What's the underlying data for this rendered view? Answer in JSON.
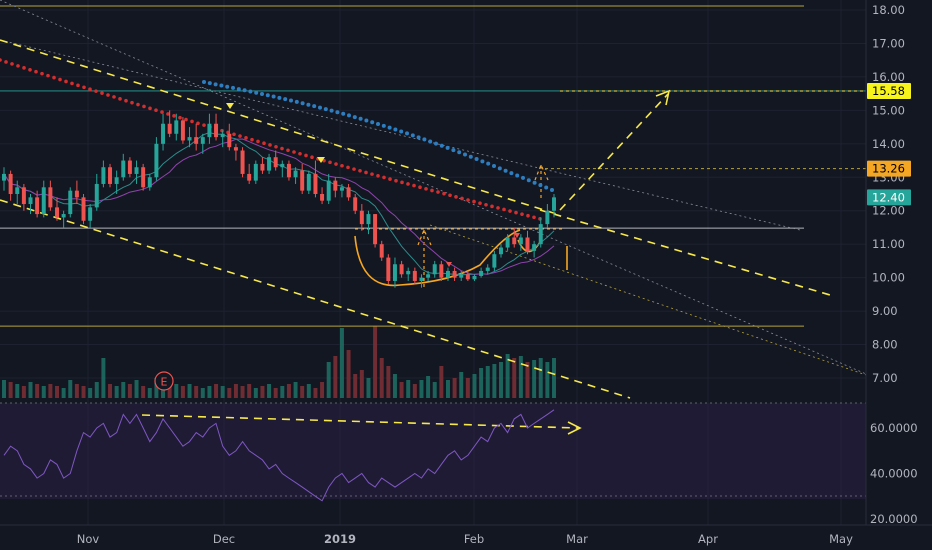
{
  "chart_data": {
    "type": "candlestick",
    "price_axis": {
      "ticks": [
        "18.00",
        "17.00",
        "16.00",
        "15.00",
        "14.00",
        "13.00",
        "12.00",
        "11.00",
        "10.00",
        "9.00",
        "8.00",
        "7.00"
      ],
      "range": [
        6.6,
        18.25
      ]
    },
    "rsi_axis": {
      "ticks": [
        "60.0000",
        "40.0000",
        "20.0000"
      ],
      "range": [
        18,
        70
      ],
      "band_upper": 70,
      "band_lower": 30
    },
    "time_axis": {
      "labels": [
        "Nov",
        "Dec",
        "2019",
        "Feb",
        "Mar",
        "Apr",
        "May"
      ]
    },
    "price_badges": [
      {
        "label": "15.58",
        "value": 15.58,
        "bg": "#f7f41b",
        "fg": "#000000"
      },
      {
        "label": "13.26",
        "value": 13.26,
        "bg": "#f5a623",
        "fg": "#000000"
      },
      {
        "label": "12.40",
        "value": 12.4,
        "bg": "#26a69a",
        "fg": "#ffffff"
      }
    ],
    "horizontal_levels": [
      18.12,
      15.58,
      13.26,
      11.48,
      8.55
    ],
    "earnings_marker": "E",
    "candles": [
      [
        12.9,
        13.3,
        12.6,
        13.1
      ],
      [
        13.1,
        13.2,
        12.3,
        12.5
      ],
      [
        12.5,
        12.9,
        12.2,
        12.7
      ],
      [
        12.7,
        12.8,
        12.0,
        12.2
      ],
      [
        12.2,
        12.5,
        11.9,
        12.4
      ],
      [
        12.4,
        12.6,
        11.8,
        11.9
      ],
      [
        11.9,
        12.9,
        11.8,
        12.7
      ],
      [
        12.7,
        12.9,
        12.0,
        12.1
      ],
      [
        12.1,
        12.4,
        11.7,
        11.8
      ],
      [
        11.8,
        12.0,
        11.5,
        11.9
      ],
      [
        11.9,
        12.7,
        11.8,
        12.6
      ],
      [
        12.6,
        12.9,
        12.2,
        12.4
      ],
      [
        12.4,
        12.5,
        11.6,
        11.7
      ],
      [
        11.7,
        12.2,
        11.5,
        12.1
      ],
      [
        12.1,
        13.1,
        12.0,
        12.8
      ],
      [
        12.8,
        13.5,
        12.7,
        13.3
      ],
      [
        13.3,
        13.4,
        12.7,
        12.8
      ],
      [
        12.8,
        13.2,
        12.5,
        13.0
      ],
      [
        13.0,
        13.7,
        12.9,
        13.5
      ],
      [
        13.5,
        13.6,
        13.0,
        13.1
      ],
      [
        13.1,
        13.5,
        12.8,
        13.3
      ],
      [
        13.3,
        13.4,
        12.6,
        12.7
      ],
      [
        12.7,
        13.1,
        12.6,
        13.0
      ],
      [
        13.0,
        14.2,
        12.9,
        14.0
      ],
      [
        14.0,
        14.9,
        13.8,
        14.6
      ],
      [
        14.6,
        15.0,
        14.2,
        14.3
      ],
      [
        14.3,
        14.9,
        14.1,
        14.7
      ],
      [
        14.7,
        14.8,
        14.0,
        14.1
      ],
      [
        14.1,
        14.5,
        13.9,
        14.2
      ],
      [
        14.2,
        14.6,
        13.8,
        14.0
      ],
      [
        14.0,
        14.3,
        13.7,
        14.2
      ],
      [
        14.2,
        14.9,
        14.0,
        14.6
      ],
      [
        14.6,
        14.9,
        14.1,
        14.2
      ],
      [
        14.2,
        14.4,
        13.9,
        14.3
      ],
      [
        14.3,
        14.6,
        13.8,
        13.9
      ],
      [
        13.9,
        14.0,
        13.5,
        13.8
      ],
      [
        13.8,
        13.9,
        13.0,
        13.1
      ],
      [
        13.1,
        13.4,
        12.8,
        12.9
      ],
      [
        12.9,
        13.5,
        12.8,
        13.4
      ],
      [
        13.4,
        13.6,
        13.1,
        13.2
      ],
      [
        13.2,
        13.7,
        13.1,
        13.6
      ],
      [
        13.6,
        13.8,
        13.2,
        13.3
      ],
      [
        13.3,
        13.5,
        13.0,
        13.4
      ],
      [
        13.4,
        13.5,
        12.9,
        13.0
      ],
      [
        13.0,
        13.3,
        12.8,
        13.2
      ],
      [
        13.2,
        13.4,
        12.5,
        12.6
      ],
      [
        12.6,
        13.2,
        12.5,
        13.1
      ],
      [
        13.1,
        13.5,
        12.4,
        12.5
      ],
      [
        12.5,
        12.7,
        12.2,
        12.3
      ],
      [
        12.3,
        13.1,
        12.2,
        12.9
      ],
      [
        12.9,
        13.0,
        12.4,
        12.6
      ],
      [
        12.6,
        12.8,
        12.4,
        12.7
      ],
      [
        12.7,
        12.8,
        12.3,
        12.4
      ],
      [
        12.4,
        12.5,
        11.9,
        12.0
      ],
      [
        12.0,
        12.2,
        11.4,
        11.6
      ],
      [
        11.6,
        12.0,
        11.3,
        11.9
      ],
      [
        11.9,
        11.9,
        10.9,
        11.0
      ],
      [
        11.0,
        11.1,
        10.5,
        10.6
      ],
      [
        10.6,
        10.7,
        9.8,
        9.9
      ],
      [
        9.9,
        10.6,
        9.7,
        10.4
      ],
      [
        10.4,
        10.5,
        10.0,
        10.1
      ],
      [
        10.1,
        10.3,
        9.9,
        10.2
      ],
      [
        10.2,
        10.3,
        9.8,
        9.9
      ],
      [
        9.9,
        10.1,
        9.7,
        10.0
      ],
      [
        10.0,
        10.2,
        9.9,
        10.1
      ],
      [
        10.1,
        10.5,
        10.0,
        10.4
      ],
      [
        10.4,
        10.5,
        9.9,
        10.0
      ],
      [
        10.0,
        10.3,
        9.9,
        10.2
      ],
      [
        10.2,
        10.3,
        9.9,
        10.0
      ],
      [
        10.0,
        10.2,
        9.9,
        10.1
      ],
      [
        10.1,
        10.2,
        9.9,
        9.95
      ],
      [
        9.95,
        10.1,
        9.9,
        10.05
      ],
      [
        10.05,
        10.3,
        10.0,
        10.2
      ],
      [
        10.2,
        10.4,
        10.1,
        10.3
      ],
      [
        10.3,
        10.8,
        10.2,
        10.7
      ],
      [
        10.7,
        11.0,
        10.6,
        10.9
      ],
      [
        10.9,
        11.3,
        10.8,
        11.2
      ],
      [
        11.2,
        11.5,
        10.9,
        11.0
      ],
      [
        11.0,
        11.3,
        10.8,
        11.2
      ],
      [
        11.2,
        11.4,
        10.7,
        10.8
      ],
      [
        10.8,
        11.1,
        10.6,
        11.0
      ],
      [
        11.0,
        11.8,
        10.9,
        11.6
      ],
      [
        11.6,
        12.2,
        11.5,
        12.0
      ],
      [
        12.0,
        12.5,
        11.8,
        12.4
      ]
    ],
    "volume": [
      0.9,
      0.8,
      0.7,
      0.6,
      0.8,
      0.7,
      0.6,
      0.7,
      0.6,
      0.5,
      0.9,
      0.7,
      0.6,
      0.5,
      0.8,
      2.0,
      0.7,
      0.6,
      0.8,
      0.7,
      0.9,
      0.6,
      0.5,
      1.0,
      0.9,
      0.8,
      0.7,
      0.6,
      0.7,
      0.6,
      0.5,
      0.6,
      0.7,
      0.6,
      0.5,
      0.7,
      0.6,
      0.7,
      0.5,
      0.6,
      0.7,
      0.5,
      0.6,
      0.7,
      0.8,
      0.6,
      0.7,
      0.5,
      0.8,
      1.8,
      2.1,
      3.5,
      2.4,
      1.2,
      1.4,
      1.0,
      3.6,
      2.0,
      1.6,
      1.2,
      0.8,
      0.9,
      0.7,
      0.9,
      1.1,
      0.8,
      1.6,
      0.9,
      1.0,
      1.3,
      1.0,
      1.2,
      1.5,
      1.6,
      1.7,
      1.8,
      2.2,
      2.0,
      2.1,
      1.8,
      1.9,
      2.0,
      1.8,
      2.0
    ],
    "rsi": [
      48,
      52,
      50,
      44,
      42,
      38,
      40,
      46,
      44,
      38,
      40,
      50,
      58,
      56,
      60,
      62,
      56,
      58,
      66,
      62,
      66,
      60,
      54,
      58,
      64,
      60,
      56,
      52,
      54,
      58,
      56,
      60,
      62,
      52,
      48,
      50,
      54,
      50,
      48,
      46,
      42,
      44,
      40,
      38,
      36,
      34,
      32,
      30,
      28,
      34,
      38,
      40,
      36,
      38,
      40,
      36,
      34,
      38,
      36,
      34,
      36,
      38,
      40,
      38,
      42,
      40,
      44,
      48,
      50,
      46,
      48,
      52,
      56,
      54,
      60,
      62,
      58,
      64,
      66,
      60,
      62,
      64,
      66,
      68
    ]
  }
}
